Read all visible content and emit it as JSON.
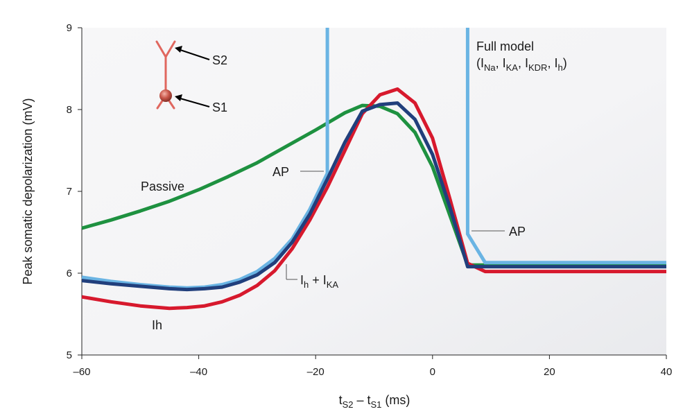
{
  "chart_data": {
    "type": "line",
    "title": "",
    "ylabel": "Peak somatic depolarization (mV)",
    "xlabel": {
      "main": "t",
      "sub1": "S2",
      "mid": " – t",
      "sub2": "S1",
      "unit": " (ms)"
    },
    "xlim": [
      -60,
      40
    ],
    "ylim": [
      5,
      9
    ],
    "xticks": [
      -60,
      -40,
      -20,
      0,
      20,
      40
    ],
    "xtick_labels": [
      "–60",
      "–40",
      "–20",
      "0",
      "20",
      "40"
    ],
    "yticks": [
      5,
      6,
      7,
      8,
      9
    ],
    "ytick_labels": [
      "5",
      "6",
      "7",
      "8",
      "9"
    ],
    "grid": false,
    "series": [
      {
        "name": "Passive",
        "color": "#1e9140",
        "points": [
          [
            -60,
            6.55
          ],
          [
            -55,
            6.65
          ],
          [
            -50,
            6.76
          ],
          [
            -45,
            6.88
          ],
          [
            -40,
            7.02
          ],
          [
            -35,
            7.18
          ],
          [
            -30,
            7.35
          ],
          [
            -25,
            7.55
          ],
          [
            -20,
            7.75
          ],
          [
            -15,
            7.96
          ],
          [
            -12,
            8.05
          ],
          [
            -9,
            8.04
          ],
          [
            -6,
            7.95
          ],
          [
            -3,
            7.72
          ],
          [
            0,
            7.3
          ],
          [
            3,
            6.7
          ],
          [
            6,
            6.1
          ],
          [
            40,
            6.1
          ]
        ]
      },
      {
        "name": "Ih",
        "color": "#d7192d",
        "points": [
          [
            -60,
            5.71
          ],
          [
            -55,
            5.65
          ],
          [
            -50,
            5.6
          ],
          [
            -45,
            5.57
          ],
          [
            -42,
            5.58
          ],
          [
            -39,
            5.6
          ],
          [
            -36,
            5.65
          ],
          [
            -33,
            5.73
          ],
          [
            -30,
            5.85
          ],
          [
            -27,
            6.03
          ],
          [
            -24,
            6.3
          ],
          [
            -21,
            6.65
          ],
          [
            -18,
            7.05
          ],
          [
            -15,
            7.5
          ],
          [
            -12,
            7.95
          ],
          [
            -9,
            8.18
          ],
          [
            -6,
            8.25
          ],
          [
            -3,
            8.08
          ],
          [
            0,
            7.65
          ],
          [
            3,
            6.9
          ],
          [
            6,
            6.12
          ],
          [
            9,
            6.02
          ],
          [
            40,
            6.02
          ]
        ]
      },
      {
        "name": "Ih + IKA",
        "color": "#213f7c",
        "points": [
          [
            -60,
            5.91
          ],
          [
            -55,
            5.87
          ],
          [
            -50,
            5.84
          ],
          [
            -45,
            5.81
          ],
          [
            -42,
            5.8
          ],
          [
            -39,
            5.81
          ],
          [
            -36,
            5.83
          ],
          [
            -33,
            5.89
          ],
          [
            -30,
            5.98
          ],
          [
            -27,
            6.13
          ],
          [
            -24,
            6.38
          ],
          [
            -21,
            6.72
          ],
          [
            -18,
            7.15
          ],
          [
            -15,
            7.6
          ],
          [
            -12,
            7.98
          ],
          [
            -9,
            8.06
          ],
          [
            -6,
            8.08
          ],
          [
            -3,
            7.88
          ],
          [
            0,
            7.45
          ],
          [
            3,
            6.8
          ],
          [
            6,
            6.08
          ],
          [
            40,
            6.08
          ]
        ]
      },
      {
        "name": "Full model",
        "color": "#6ab4e3",
        "points": [
          [
            -60,
            5.95
          ],
          [
            -55,
            5.9
          ],
          [
            -50,
            5.86
          ],
          [
            -45,
            5.83
          ],
          [
            -42,
            5.82
          ],
          [
            -39,
            5.83
          ],
          [
            -36,
            5.86
          ],
          [
            -33,
            5.92
          ],
          [
            -30,
            6.02
          ],
          [
            -27,
            6.18
          ],
          [
            -24,
            6.42
          ],
          [
            -21,
            6.78
          ],
          [
            -18,
            7.22
          ],
          [
            -18,
            9.0
          ]
        ],
        "points_after": [
          [
            6,
            9.0
          ],
          [
            6,
            6.48
          ],
          [
            9,
            6.13
          ],
          [
            40,
            6.13
          ]
        ]
      }
    ],
    "annotations": {
      "passive": "Passive",
      "ih": "Ih",
      "ih_ika": {
        "i1": "I",
        "s1": "h",
        "plus": " + I",
        "s2": "KA"
      },
      "ap": "AP",
      "full_model_line1": "Full model",
      "full_model_line2": {
        "p0": "(I",
        "s0": "Na",
        "p1": ", I",
        "s1": "KA",
        "p2": ", I",
        "s2": "KDR",
        "p3": ", I",
        "s3": "h",
        "p4": ")"
      },
      "s2": "S2",
      "s1": "S1"
    },
    "neuron_color": "#e0675f"
  }
}
